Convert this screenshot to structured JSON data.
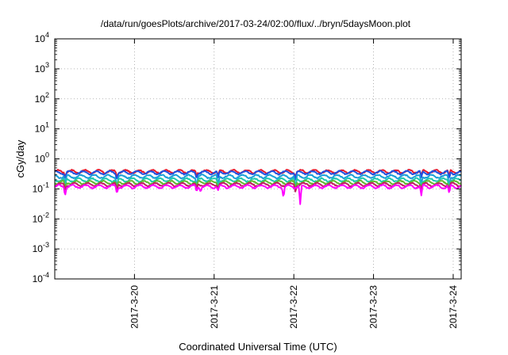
{
  "chart_data": {
    "type": "line",
    "title": "/data/run/goesPlots/archive/2017-03-24/02:00/flux/../bryn/5daysMoon.plot",
    "xlabel": "Coordinated Universal Time (UTC)",
    "ylabel": "cGy/day",
    "yscale": "log",
    "ylim": [
      0.0001,
      10000
    ],
    "xlim": [
      0,
      5.1
    ],
    "y_ticks": [
      {
        "mantissa": "10",
        "exp": "-4"
      },
      {
        "mantissa": "10",
        "exp": "-3"
      },
      {
        "mantissa": "10",
        "exp": "-2"
      },
      {
        "mantissa": "10",
        "exp": "-1"
      },
      {
        "mantissa": "10",
        "exp": "0"
      },
      {
        "mantissa": "10",
        "exp": "1"
      },
      {
        "mantissa": "10",
        "exp": "2"
      },
      {
        "mantissa": "10",
        "exp": "3"
      },
      {
        "mantissa": "10",
        "exp": "4"
      }
    ],
    "x_ticks": [
      {
        "label": "2017-3-20",
        "pos": 1
      },
      {
        "label": "2017-3-21",
        "pos": 2
      },
      {
        "label": "2017-3-22",
        "pos": 3
      },
      {
        "label": "2017-3-23",
        "pos": 4
      },
      {
        "label": "2017-3-24",
        "pos": 5
      }
    ],
    "grid": true,
    "series": [
      {
        "color": "#e8192c",
        "base": 0.38,
        "dips": [
          [
            0.13,
            0.26
          ],
          [
            0.78,
            0.25
          ],
          [
            1.78,
            0.26
          ],
          [
            2.05,
            0.28
          ],
          [
            3.02,
            0.26
          ],
          [
            4.6,
            0.28
          ],
          [
            4.95,
            0.27
          ]
        ]
      },
      {
        "color": "#2050e0",
        "base": 0.35,
        "dips": [
          [
            0.13,
            0.22
          ],
          [
            0.78,
            0.2
          ],
          [
            1.78,
            0.22
          ],
          [
            2.05,
            0.24
          ],
          [
            3.02,
            0.2
          ],
          [
            4.6,
            0.24
          ],
          [
            4.95,
            0.22
          ]
        ]
      },
      {
        "color": "#1aa0d8",
        "base": 0.26,
        "dips": [
          [
            0.13,
            0.12
          ],
          [
            0.78,
            0.1
          ],
          [
            1.78,
            0.11
          ],
          [
            2.05,
            0.12
          ],
          [
            3.02,
            0.08
          ],
          [
            4.6,
            0.14
          ],
          [
            4.95,
            0.12
          ]
        ]
      },
      {
        "color": "#20c8b0",
        "base": 0.2,
        "dips": [
          [
            0.13,
            0.12
          ],
          [
            0.78,
            0.11
          ],
          [
            1.78,
            0.12
          ],
          [
            2.05,
            0.13
          ],
          [
            3.02,
            0.1
          ],
          [
            4.6,
            0.14
          ],
          [
            4.95,
            0.12
          ]
        ]
      },
      {
        "color": "#60b830",
        "base": 0.165,
        "dips": [
          [
            0.13,
            0.1
          ],
          [
            0.78,
            0.09
          ],
          [
            1.78,
            0.1
          ],
          [
            2.05,
            0.11
          ],
          [
            3.02,
            0.09
          ],
          [
            4.6,
            0.12
          ],
          [
            4.95,
            0.1
          ]
        ]
      },
      {
        "color": "#c02060",
        "base": 0.14,
        "dips": [
          [
            0.13,
            0.09
          ],
          [
            0.78,
            0.08
          ],
          [
            1.78,
            0.09
          ],
          [
            2.05,
            0.1
          ],
          [
            3.02,
            0.08
          ],
          [
            4.6,
            0.1
          ],
          [
            4.95,
            0.09
          ]
        ]
      },
      {
        "color": "#ff00ff",
        "base": 0.12,
        "dips": [
          [
            0.13,
            0.06
          ],
          [
            0.78,
            0.07
          ],
          [
            1.78,
            0.08
          ],
          [
            1.83,
            0.08
          ],
          [
            2.05,
            0.09
          ],
          [
            2.87,
            0.05
          ],
          [
            3.08,
            0.03
          ],
          [
            4.6,
            0.06
          ],
          [
            4.95,
            0.07
          ]
        ]
      }
    ]
  }
}
